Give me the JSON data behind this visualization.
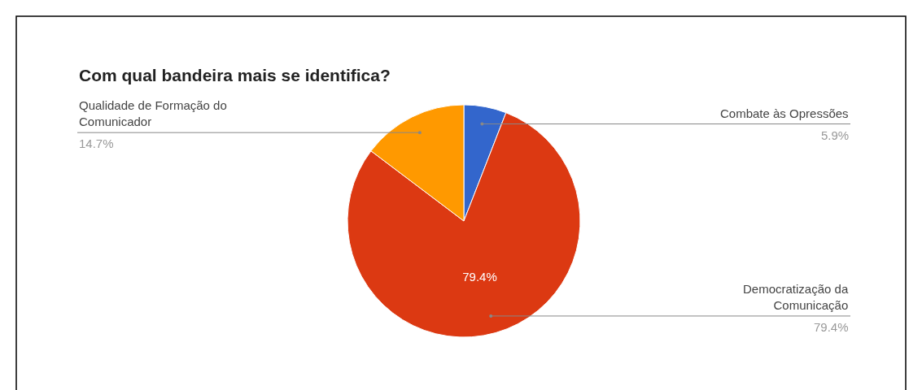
{
  "chart_data": {
    "type": "pie",
    "title": "Com qual bandeira mais se identifica?",
    "categories": [
      "Combate às Opressões",
      "Democratização da Comunicação",
      "Qualidade de Formação do Comunicador"
    ],
    "values": [
      5.9,
      79.4,
      14.7
    ],
    "colors": [
      "#3366cc",
      "#dc3912",
      "#ff9900"
    ],
    "value_labels": [
      "5.9%",
      "79.4%",
      "14.7%"
    ],
    "legend": false
  }
}
